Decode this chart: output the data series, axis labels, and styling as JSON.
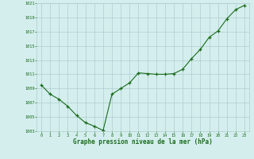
{
  "x": [
    0,
    1,
    2,
    3,
    4,
    5,
    6,
    7,
    8,
    9,
    10,
    11,
    12,
    13,
    14,
    15,
    16,
    17,
    18,
    19,
    20,
    21,
    22,
    23
  ],
  "y": [
    1009.5,
    1008.2,
    1007.5,
    1006.5,
    1005.2,
    1004.2,
    1003.7,
    1003.1,
    1008.2,
    1009.0,
    1009.8,
    1011.2,
    1011.1,
    1011.0,
    1011.0,
    1011.1,
    1011.7,
    1013.2,
    1014.5,
    1016.2,
    1017.1,
    1018.8,
    1020.1,
    1020.7
  ],
  "ylim": [
    1003,
    1021
  ],
  "yticks": [
    1003,
    1005,
    1007,
    1009,
    1011,
    1013,
    1015,
    1017,
    1019,
    1021
  ],
  "xticks": [
    0,
    1,
    2,
    3,
    4,
    5,
    6,
    7,
    8,
    9,
    10,
    11,
    12,
    13,
    14,
    15,
    16,
    17,
    18,
    19,
    20,
    21,
    22,
    23
  ],
  "xlabel": "Graphe pression niveau de la mer (hPa)",
  "line_color": "#1a6b1a",
  "marker_color": "#1a6b1a",
  "bg_color": "#d4eeee",
  "grid_color": "#b0cccc",
  "tick_color": "#1a6b1a",
  "xlabel_color": "#1a6b1a",
  "figsize": [
    3.2,
    2.0
  ],
  "dpi": 100
}
